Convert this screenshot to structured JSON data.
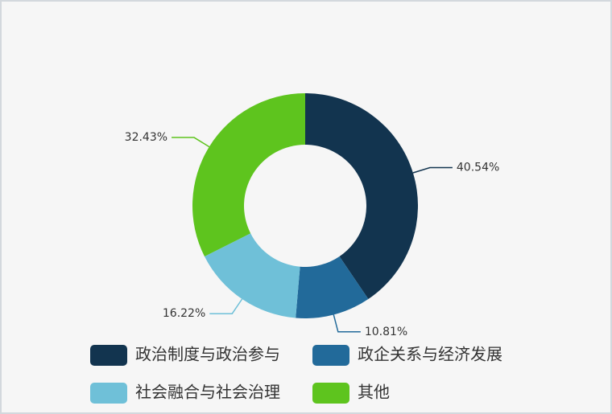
{
  "chart_data": {
    "type": "donut",
    "categories": [
      "政治制度与政治参与",
      "政企关系与经济发展",
      "社会融合与社会治理",
      "其他"
    ],
    "values": [
      40.54,
      10.81,
      16.22,
      32.43
    ],
    "value_labels": [
      "40.54%",
      "10.81%",
      "16.22%",
      "32.43%"
    ],
    "colors": [
      "#12344f",
      "#226a9a",
      "#6fc0d8",
      "#5ec41e"
    ],
    "legend": "bottom"
  }
}
